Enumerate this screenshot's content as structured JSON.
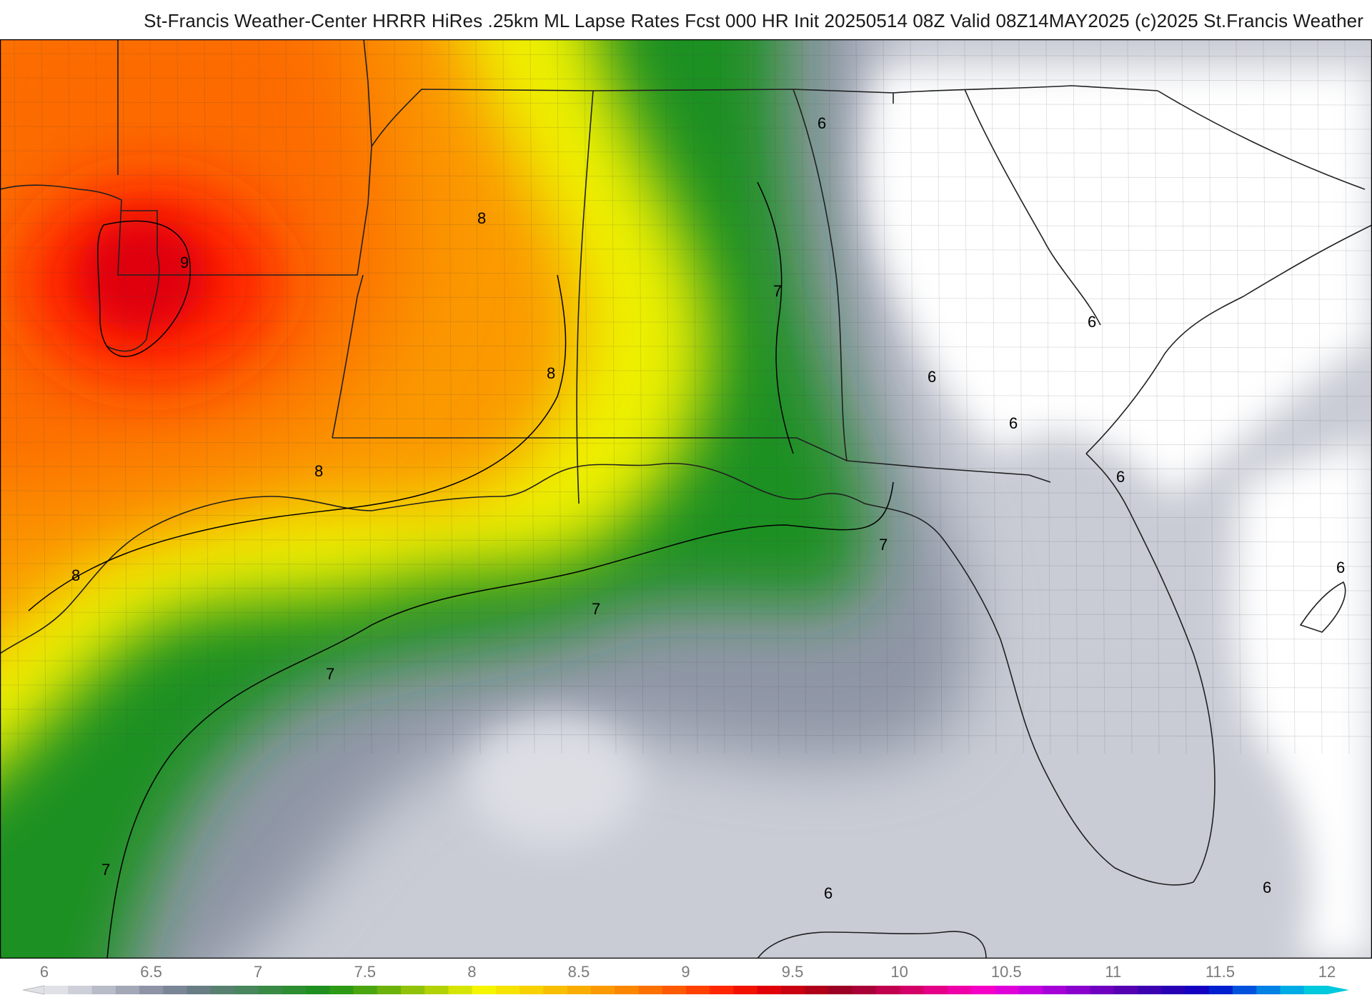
{
  "header": {
    "title": "St-Francis Weather-Center HRRR HiRes .25km ML Lapse Rates  Fcst 000 HR Init 20250514 08Z  Valid 08Z14MAY2025   (c)2025 St.Francis Weather"
  },
  "colorbar": {
    "min": 6,
    "max": 12,
    "step": 0.125,
    "tick_labels": [
      "6",
      "6.5",
      "7",
      "7.5",
      "8",
      "8.5",
      "9",
      "9.5",
      "10",
      "10.5",
      "11",
      "11.5",
      "12"
    ],
    "colors": [
      "#dfe1e7",
      "#cdd0d9",
      "#b8bcc8",
      "#a3a8b7",
      "#8e94a6",
      "#7a8596",
      "#687d84",
      "#578070",
      "#49855d",
      "#3a8a47",
      "#2c8d33",
      "#1f9020",
      "#2c9a14",
      "#4aa50f",
      "#6bb20b",
      "#8fc208",
      "#b3d205",
      "#d6e402",
      "#f5f500",
      "#f6e300",
      "#f7d100",
      "#f8bf00",
      "#f9ad00",
      "#fa9a00",
      "#fb8600",
      "#fc7100",
      "#fd5a00",
      "#fe4100",
      "#ff2600",
      "#f21200",
      "#e00008",
      "#c8000f",
      "#b00018",
      "#9c0024",
      "#aa0038",
      "#c0004e",
      "#d30068",
      "#e40087",
      "#f000a8",
      "#f400c6",
      "#e000d8",
      "#c400df",
      "#a600d8",
      "#8a00cc",
      "#6f00bf",
      "#5500b2",
      "#3d00b0",
      "#2700b5",
      "#1400c0",
      "#0020d0",
      "#0052dd",
      "#0081e4",
      "#00ace6",
      "#00c8dd"
    ],
    "extend": "both"
  },
  "map": {
    "field_colors": {
      "max_red": "#ff1a00",
      "orange": "#fc8000",
      "yellow": "#f5f500",
      "green": "#1f9020",
      "gray": "#9aa0ae"
    },
    "contour_labels": [
      "9",
      "8",
      "8",
      "8",
      "8",
      "7",
      "7",
      "7",
      "7",
      "7",
      "6",
      "6",
      "6",
      "6",
      "6",
      "6",
      "6",
      "6"
    ]
  }
}
